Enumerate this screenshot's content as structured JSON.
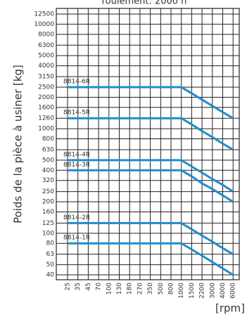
{
  "chart_data": {
    "type": "line",
    "title": "roulement: 2000 h",
    "y_label": "Poids de la pièce à usiner [kg]",
    "x_label": "[rpm]",
    "y_scale": "log",
    "grid": true,
    "ylim": [
      40,
      12500
    ],
    "yticks": [
      40,
      50,
      63,
      80,
      100,
      125,
      160,
      200,
      250,
      320,
      400,
      500,
      630,
      800,
      1000,
      1260,
      1600,
      2000,
      2500,
      3150,
      4000,
      5000,
      6300,
      8000,
      10000,
      12500
    ],
    "categories": [
      "25",
      "35",
      "45",
      "70",
      "100",
      "130",
      "180",
      "270",
      "350",
      "500",
      "800",
      "1000",
      "1500",
      "2200",
      "3000",
      "4000",
      "6000"
    ],
    "series": [
      {
        "name": "8814-6R",
        "color": "#1f8ccf",
        "values": [
          2500,
          2500,
          2500,
          2500,
          2500,
          2500,
          2500,
          2500,
          2500,
          2500,
          2500,
          2500,
          2180,
          1900,
          1650,
          1440,
          1260
        ]
      },
      {
        "name": "8814-5R",
        "color": "#1f8ccf",
        "values": [
          1260,
          1260,
          1260,
          1260,
          1260,
          1260,
          1260,
          1260,
          1260,
          1260,
          1260,
          1260,
          1100,
          950,
          830,
          720,
          630
        ]
      },
      {
        "name": "8814-4R",
        "color": "#1f8ccf",
        "values": [
          500,
          500,
          500,
          500,
          500,
          500,
          500,
          500,
          500,
          500,
          500,
          500,
          435,
          380,
          330,
          290,
          250
        ]
      },
      {
        "name": "8814-3R",
        "color": "#1f8ccf",
        "values": [
          400,
          400,
          400,
          400,
          400,
          400,
          400,
          400,
          400,
          400,
          400,
          400,
          350,
          300,
          265,
          230,
          200
        ]
      },
      {
        "name": "8814-2R",
        "color": "#1f8ccf",
        "values": [
          125,
          125,
          125,
          125,
          125,
          125,
          125,
          125,
          125,
          125,
          125,
          125,
          109,
          95,
          83,
          72,
          63
        ]
      },
      {
        "name": "8814-1R",
        "color": "#1f8ccf",
        "values": [
          80,
          80,
          80,
          80,
          80,
          80,
          80,
          80,
          80,
          80,
          80,
          80,
          70,
          61,
          53,
          46,
          40
        ]
      }
    ]
  }
}
